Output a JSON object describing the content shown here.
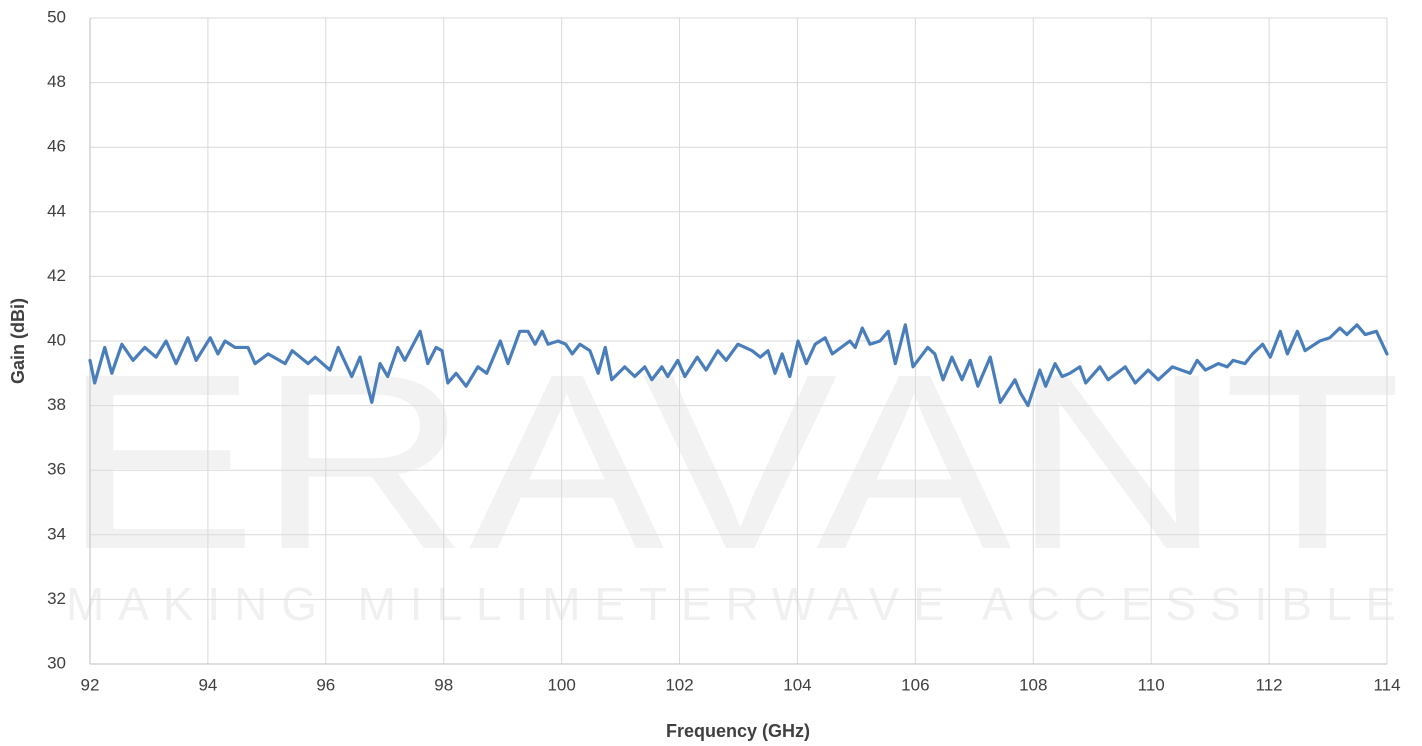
{
  "chart_data": {
    "type": "line",
    "watermark": "ERAVANT",
    "watermark_tagline": "MAKING MILLIMETERWAVE ACCESSIBLE",
    "xlabel": "Frequency (GHz)",
    "ylabel": "Gain (dBi)",
    "xlim": [
      92,
      114
    ],
    "ylim": [
      30,
      50
    ],
    "xticks": [
      92,
      94,
      96,
      98,
      100,
      102,
      104,
      106,
      108,
      110,
      112,
      114
    ],
    "yticks": [
      30,
      32,
      34,
      36,
      38,
      40,
      42,
      44,
      46,
      48,
      50
    ],
    "grid": true,
    "series": [
      {
        "name": "Gain",
        "color": "#4a7ebb",
        "x": [
          92,
          92.08,
          92.25,
          92.37,
          92.54,
          92.73,
          92.93,
          93.12,
          93.29,
          93.46,
          93.66,
          93.8,
          94.04,
          94.17,
          94.29,
          94.46,
          94.68,
          94.8,
          95.02,
          95.31,
          95.43,
          95.7,
          95.82,
          96.07,
          96.21,
          96.44,
          96.58,
          96.78,
          96.92,
          97.05,
          97.22,
          97.34,
          97.6,
          97.73,
          97.87,
          97.97,
          98.07,
          98.21,
          98.38,
          98.58,
          98.73,
          98.96,
          99.09,
          99.29,
          99.43,
          99.55,
          99.67,
          99.77,
          99.94,
          100.07,
          100.18,
          100.31,
          100.48,
          100.62,
          100.74,
          100.85,
          101.07,
          101.24,
          101.41,
          101.53,
          101.7,
          101.8,
          101.97,
          102.09,
          102.3,
          102.45,
          102.65,
          102.79,
          102.99,
          103.23,
          103.37,
          103.5,
          103.62,
          103.74,
          103.87,
          104.01,
          104.15,
          104.3,
          104.47,
          104.59,
          104.89,
          104.98,
          105.1,
          105.23,
          105.4,
          105.54,
          105.66,
          105.83,
          105.96,
          106.21,
          106.33,
          106.47,
          106.62,
          106.79,
          106.93,
          107.06,
          107.27,
          107.44,
          107.69,
          107.78,
          107.91,
          108.11,
          108.21,
          108.37,
          108.49,
          108.62,
          108.79,
          108.89,
          109.13,
          109.27,
          109.56,
          109.73,
          109.95,
          110.12,
          110.36,
          110.66,
          110.78,
          110.92,
          111.14,
          111.29,
          111.39,
          111.59,
          111.72,
          111.89,
          112.02,
          112.19,
          112.31,
          112.48,
          112.61,
          112.86,
          113.03,
          113.2,
          113.32,
          113.49,
          113.63,
          113.82,
          114
        ],
        "values": [
          39.4,
          38.7,
          39.8,
          39.0,
          39.9,
          39.4,
          39.8,
          39.5,
          40.0,
          39.3,
          40.1,
          39.4,
          40.1,
          39.6,
          40.0,
          39.8,
          39.8,
          39.3,
          39.6,
          39.3,
          39.7,
          39.3,
          39.5,
          39.1,
          39.8,
          38.9,
          39.5,
          38.1,
          39.3,
          38.9,
          39.8,
          39.4,
          40.3,
          39.3,
          39.8,
          39.7,
          38.7,
          39.0,
          38.6,
          39.2,
          39.0,
          40.0,
          39.3,
          40.3,
          40.3,
          39.9,
          40.3,
          39.9,
          40.0,
          39.9,
          39.6,
          39.9,
          39.7,
          39.0,
          39.8,
          38.8,
          39.2,
          38.9,
          39.2,
          38.8,
          39.2,
          38.9,
          39.4,
          38.9,
          39.5,
          39.1,
          39.7,
          39.4,
          39.9,
          39.7,
          39.5,
          39.7,
          39.0,
          39.6,
          38.9,
          40.0,
          39.3,
          39.9,
          40.1,
          39.6,
          40.0,
          39.8,
          40.4,
          39.9,
          40.0,
          40.3,
          39.3,
          40.5,
          39.2,
          39.8,
          39.6,
          38.8,
          39.5,
          38.8,
          39.4,
          38.6,
          39.5,
          38.1,
          38.8,
          38.4,
          38.0,
          39.1,
          38.6,
          39.3,
          38.9,
          39.0,
          39.2,
          38.7,
          39.2,
          38.8,
          39.2,
          38.7,
          39.1,
          38.8,
          39.2,
          39.0,
          39.4,
          39.1,
          39.3,
          39.2,
          39.4,
          39.3,
          39.6,
          39.9,
          39.5,
          40.3,
          39.6,
          40.3,
          39.7,
          40.0,
          40.1,
          40.4,
          40.2,
          40.5,
          40.2,
          40.3,
          39.6
        ]
      }
    ]
  }
}
